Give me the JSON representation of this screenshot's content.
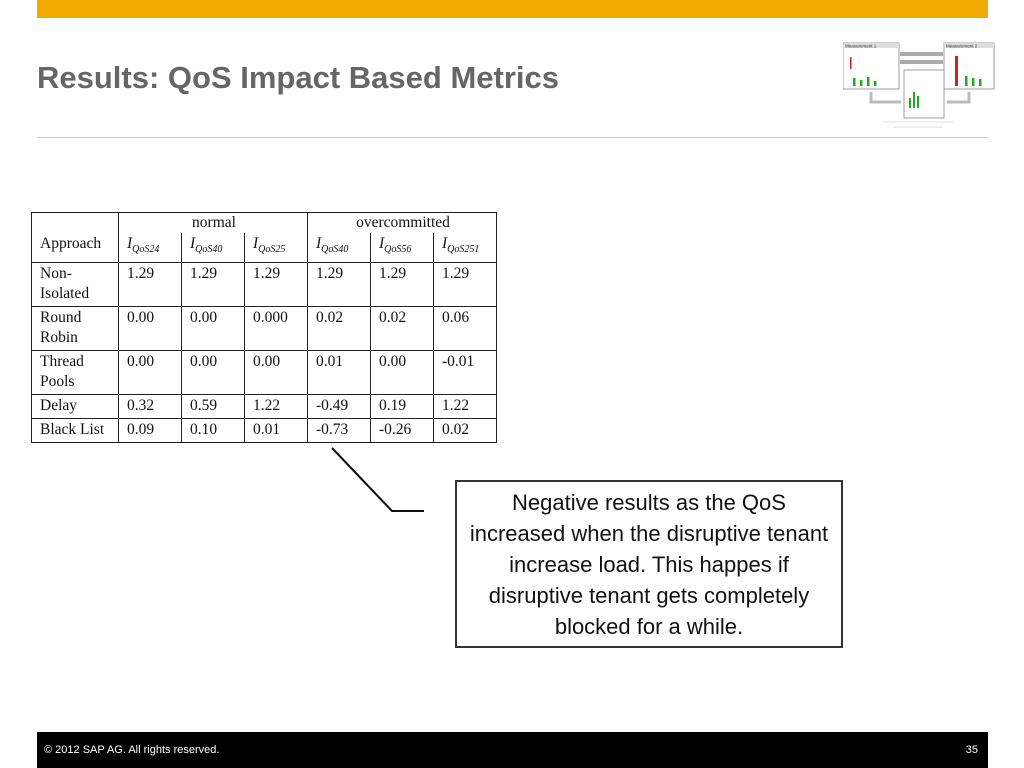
{
  "slide": {
    "title": "Results: QoS Impact Based Metrics",
    "accent_color": "#F0AB00"
  },
  "table": {
    "group_headers": [
      "normal",
      "overcommitted"
    ],
    "approach_header": "Approach",
    "metric_symbol": "I",
    "metric_subscripts": [
      "QoS24",
      "QoS40",
      "QoS25",
      "QoS40",
      "QoS56",
      "QoS251"
    ],
    "rows": [
      {
        "approach": "Non-Isolated",
        "values": [
          "1.29",
          "1.29",
          "1.29",
          "1.29",
          "1.29",
          "1.29"
        ]
      },
      {
        "approach": "Round Robin",
        "values": [
          "0.00",
          "0.00",
          "0.000",
          "0.02",
          "0.02",
          "0.06"
        ]
      },
      {
        "approach": "Thread Pools",
        "values": [
          "0.00",
          "0.00",
          "0.00",
          "0.01",
          "0.00",
          "-0.01"
        ]
      },
      {
        "approach": "Delay",
        "values": [
          "0.32",
          "0.59",
          "1.22",
          "-0.49",
          "0.19",
          "1.22"
        ]
      },
      {
        "approach": "Black List",
        "values": [
          "0.09",
          "0.10",
          "0.01",
          "-0.73",
          "-0.26",
          "0.02"
        ]
      }
    ]
  },
  "callout": {
    "text": "Negative results as the QoS increased when the disruptive tenant increase load. This happes if disruptive tenant gets completely blocked for a while."
  },
  "thumbnail": {
    "icon": "measurement-diagram-thumbnail",
    "label_left": "Measurement 1",
    "label_right": "Measurement 2"
  },
  "footer": {
    "copyright": "© 2012 SAP AG. All rights reserved.",
    "page_number": "35"
  }
}
